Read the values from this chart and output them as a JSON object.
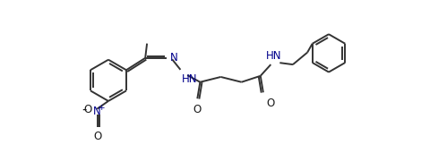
{
  "bg_color": "#ffffff",
  "line_color": "#333333",
  "text_color": "#1a1a1a",
  "blue_color": "#00008b",
  "bond_width": 1.4,
  "font_size": 8.5,
  "figsize": [
    4.99,
    1.71
  ],
  "dpi": 100,
  "xlim": [
    0,
    10
  ],
  "ylim": [
    0,
    3.42
  ]
}
